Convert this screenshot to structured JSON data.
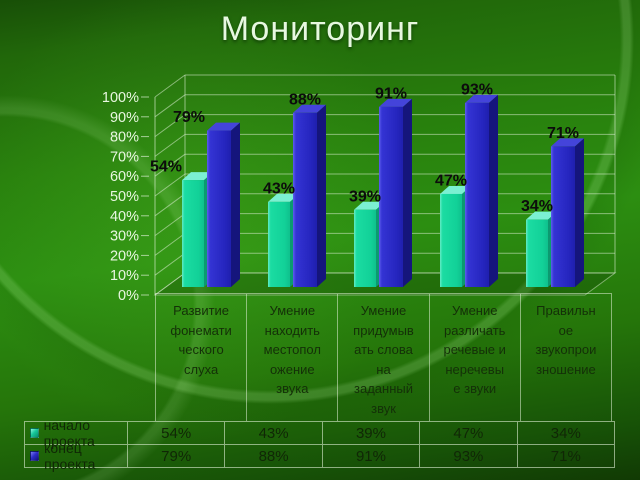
{
  "slide": {
    "title": "Мониторинг"
  },
  "chart_data": {
    "type": "bar",
    "title": "Мониторинг",
    "style": "3d-clustered-column",
    "categories": [
      "Развитие фонематического слуха",
      "Умение находить местоположение звука",
      "Умение придумывать слова на заданный звук",
      "Умение различать речевые и неречевые звуки",
      "Правильное звукопроизношение"
    ],
    "categories_wrapped": [
      [
        "Развитие",
        "фонемати",
        "ческого",
        "слуха"
      ],
      [
        "Умение",
        "находить",
        "местопол",
        "ожение",
        "звука"
      ],
      [
        "Умение",
        "придумыв",
        "ать слова",
        "на",
        "заданный",
        "звук"
      ],
      [
        "Умение",
        "различать",
        "речевые и",
        "неречевы",
        "е звуки"
      ],
      [
        "Правильн",
        "ое",
        "звукопрои",
        "зношение"
      ]
    ],
    "series": [
      {
        "name": "начало проекта",
        "values": [
          54,
          43,
          39,
          47,
          34
        ],
        "labels": [
          "54%",
          "43%",
          "39%",
          "47%",
          "34%"
        ],
        "color": "#15d69d",
        "color_top": "#7bf0d2",
        "color_side": "#0b9a70",
        "label_dx": [
          -27,
          0,
          0,
          0,
          0
        ]
      },
      {
        "name": "конец проекта",
        "values": [
          79,
          88,
          91,
          93,
          71
        ],
        "labels": [
          "79%",
          "88%",
          "91%",
          "93%",
          "71%"
        ],
        "color": "#2a2ac4",
        "color_top": "#4444da",
        "color_side": "#15157c",
        "label_dx": [
          -30,
          0,
          0,
          0,
          0
        ]
      }
    ],
    "ylim": [
      0,
      100
    ],
    "ytick_step": 10,
    "ytick_labels": [
      "0%",
      "10%",
      "20%",
      "30%",
      "40%",
      "50%",
      "60%",
      "70%",
      "80%",
      "90%",
      "100%"
    ],
    "value_suffix": "%",
    "grid": true,
    "legend_position": "bottom table",
    "gridline_color": "#d9ecd0",
    "label_color": "#0c0c0c",
    "axis_text_color": "#e9f7e1"
  }
}
